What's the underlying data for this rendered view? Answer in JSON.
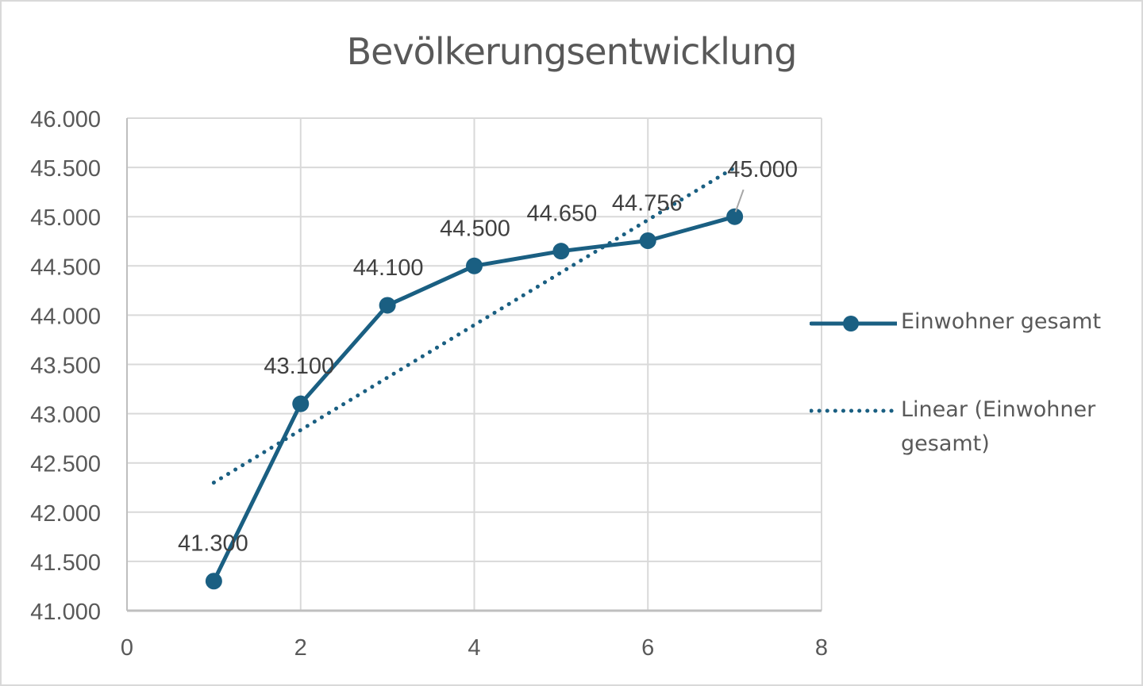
{
  "chart_data": {
    "type": "scatter",
    "title": "Bevölkerungsentwicklung",
    "xlabel": "",
    "ylabel": "",
    "xlim": [
      0,
      8
    ],
    "ylim": [
      41000,
      46000
    ],
    "x_ticks": [
      "0",
      "2",
      "4",
      "6",
      "8"
    ],
    "y_ticks": [
      "41.000",
      "41.500",
      "42.000",
      "42.500",
      "43.000",
      "43.500",
      "44.000",
      "44.500",
      "45.000",
      "45.500",
      "46.000"
    ],
    "grid": true,
    "legend_position": "right",
    "series": [
      {
        "name": "Einwohner gesamt",
        "style": "line-with-markers",
        "color": "#1a5f82",
        "x": [
          1,
          2,
          3,
          4,
          5,
          6,
          7
        ],
        "values": [
          41300,
          43100,
          44100,
          44500,
          44650,
          44756,
          45000
        ],
        "labels": [
          "41.300",
          "43.100",
          "44.100",
          "44.500",
          "44.650",
          "44.756",
          "45.000"
        ]
      },
      {
        "name": "Linear (Einwohner gesamt)",
        "style": "dotted-trendline",
        "color": "#1a5f82",
        "x": [
          1,
          7
        ],
        "values": [
          42300,
          45500
        ]
      }
    ]
  },
  "legend": {
    "items": [
      "Einwohner gesamt",
      "Linear (Einwohner",
      "gesamt)"
    ]
  }
}
